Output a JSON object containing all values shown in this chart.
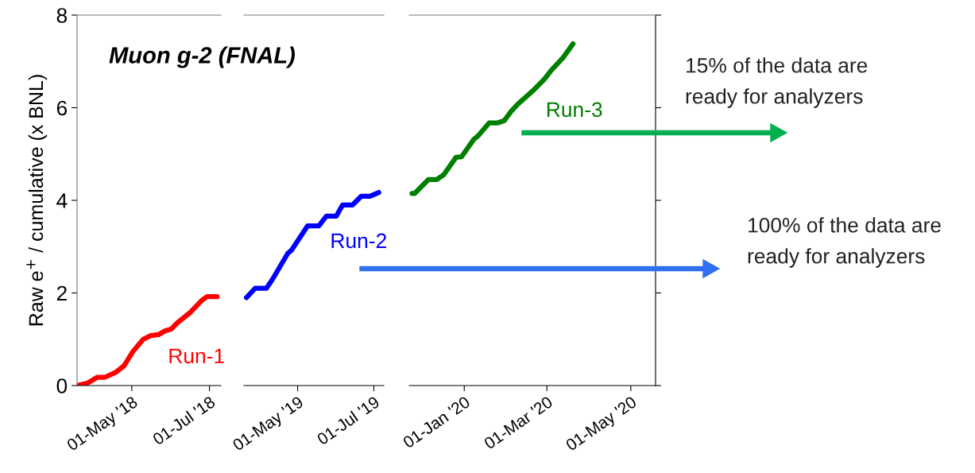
{
  "chart_data": [
    {
      "type": "line",
      "title": "Muon g-2 (FNAL)",
      "ylabel": "Raw e$^{+}$ / cumulative (x BNL)",
      "xlim": [
        "2018-03-19",
        "2018-07-10"
      ],
      "ylim": [
        0,
        8
      ],
      "yticks": [
        0,
        2,
        4,
        6,
        8
      ],
      "xticks": [
        {
          "value": "2018-05-01",
          "label": "01-May '18"
        },
        {
          "value": "2018-07-01",
          "label": "01-Jul '18"
        }
      ],
      "series": [
        {
          "name": "Run-1",
          "color": "#ff0000",
          "x": [
            "2018-03-19",
            "2018-03-27",
            "2018-04-04",
            "2018-04-10",
            "2018-04-18",
            "2018-04-25",
            "2018-05-02",
            "2018-05-10",
            "2018-05-16",
            "2018-05-22",
            "2018-05-27",
            "2018-06-01",
            "2018-06-06",
            "2018-06-16",
            "2018-06-25",
            "2018-06-29",
            "2018-07-07"
          ],
          "values": [
            0,
            0.05,
            0.18,
            0.18,
            0.28,
            0.43,
            0.74,
            1.0,
            1.08,
            1.1,
            1.18,
            1.22,
            1.36,
            1.58,
            1.84,
            1.92,
            1.92
          ]
        }
      ]
    },
    {
      "type": "line",
      "tick_labels": "x",
      "xlim": [
        "2019-03-19",
        "2019-07-09"
      ],
      "ylim": [
        0,
        8
      ],
      "xticks": [
        {
          "value": "2019-05-01",
          "label": "01-May '19"
        },
        {
          "value": "2019-07-01",
          "label": "01-Jul '19"
        }
      ],
      "series": [
        {
          "name": "Run-2",
          "color": "#0000ff",
          "x": [
            "2019-03-21",
            "2019-03-28",
            "2019-04-06",
            "2019-04-11",
            "2019-04-23",
            "2019-04-26",
            "2019-05-09",
            "2019-05-18",
            "2019-05-24",
            "2019-06-01",
            "2019-06-06",
            "2019-06-14",
            "2019-06-21",
            "2019-06-28",
            "2019-07-05"
          ],
          "values": [
            1.9,
            2.1,
            2.1,
            2.3,
            2.85,
            2.92,
            3.45,
            3.45,
            3.66,
            3.66,
            3.9,
            3.9,
            4.09,
            4.09,
            4.17
          ]
        }
      ]
    },
    {
      "type": "line",
      "tick_labels": "x",
      "xlim": [
        "2019-11-22",
        "2020-05-19"
      ],
      "ylim": [
        0,
        8
      ],
      "xticks": [
        {
          "value": "2020-01-01",
          "label": "01-Jan '20"
        },
        {
          "value": "2020-03-01",
          "label": "01-Mar '20"
        },
        {
          "value": "2020-05-01",
          "label": "01-May '20"
        }
      ],
      "annotations": [
        "15% of the data are\nready for analyzers",
        "100% of the data are\nready for analyzers"
      ],
      "series": [
        {
          "name": "Run-3",
          "color": "#007f00",
          "x": [
            "2019-11-24",
            "2019-11-26",
            "2019-12-06",
            "2019-12-12",
            "2019-12-17",
            "2019-12-26",
            "2019-12-30",
            "2020-01-08",
            "2020-01-11",
            "2020-01-19",
            "2020-01-25",
            "2020-01-30",
            "2020-02-04",
            "2020-02-09",
            "2020-02-20",
            "2020-02-28",
            "2020-03-04",
            "2020-03-13",
            "2020-03-20"
          ],
          "values": [
            4.15,
            4.15,
            4.45,
            4.45,
            4.55,
            4.93,
            4.94,
            5.32,
            5.39,
            5.67,
            5.67,
            5.72,
            5.92,
            6.08,
            6.37,
            6.61,
            6.8,
            7.09,
            7.38
          ]
        }
      ]
    }
  ]
}
